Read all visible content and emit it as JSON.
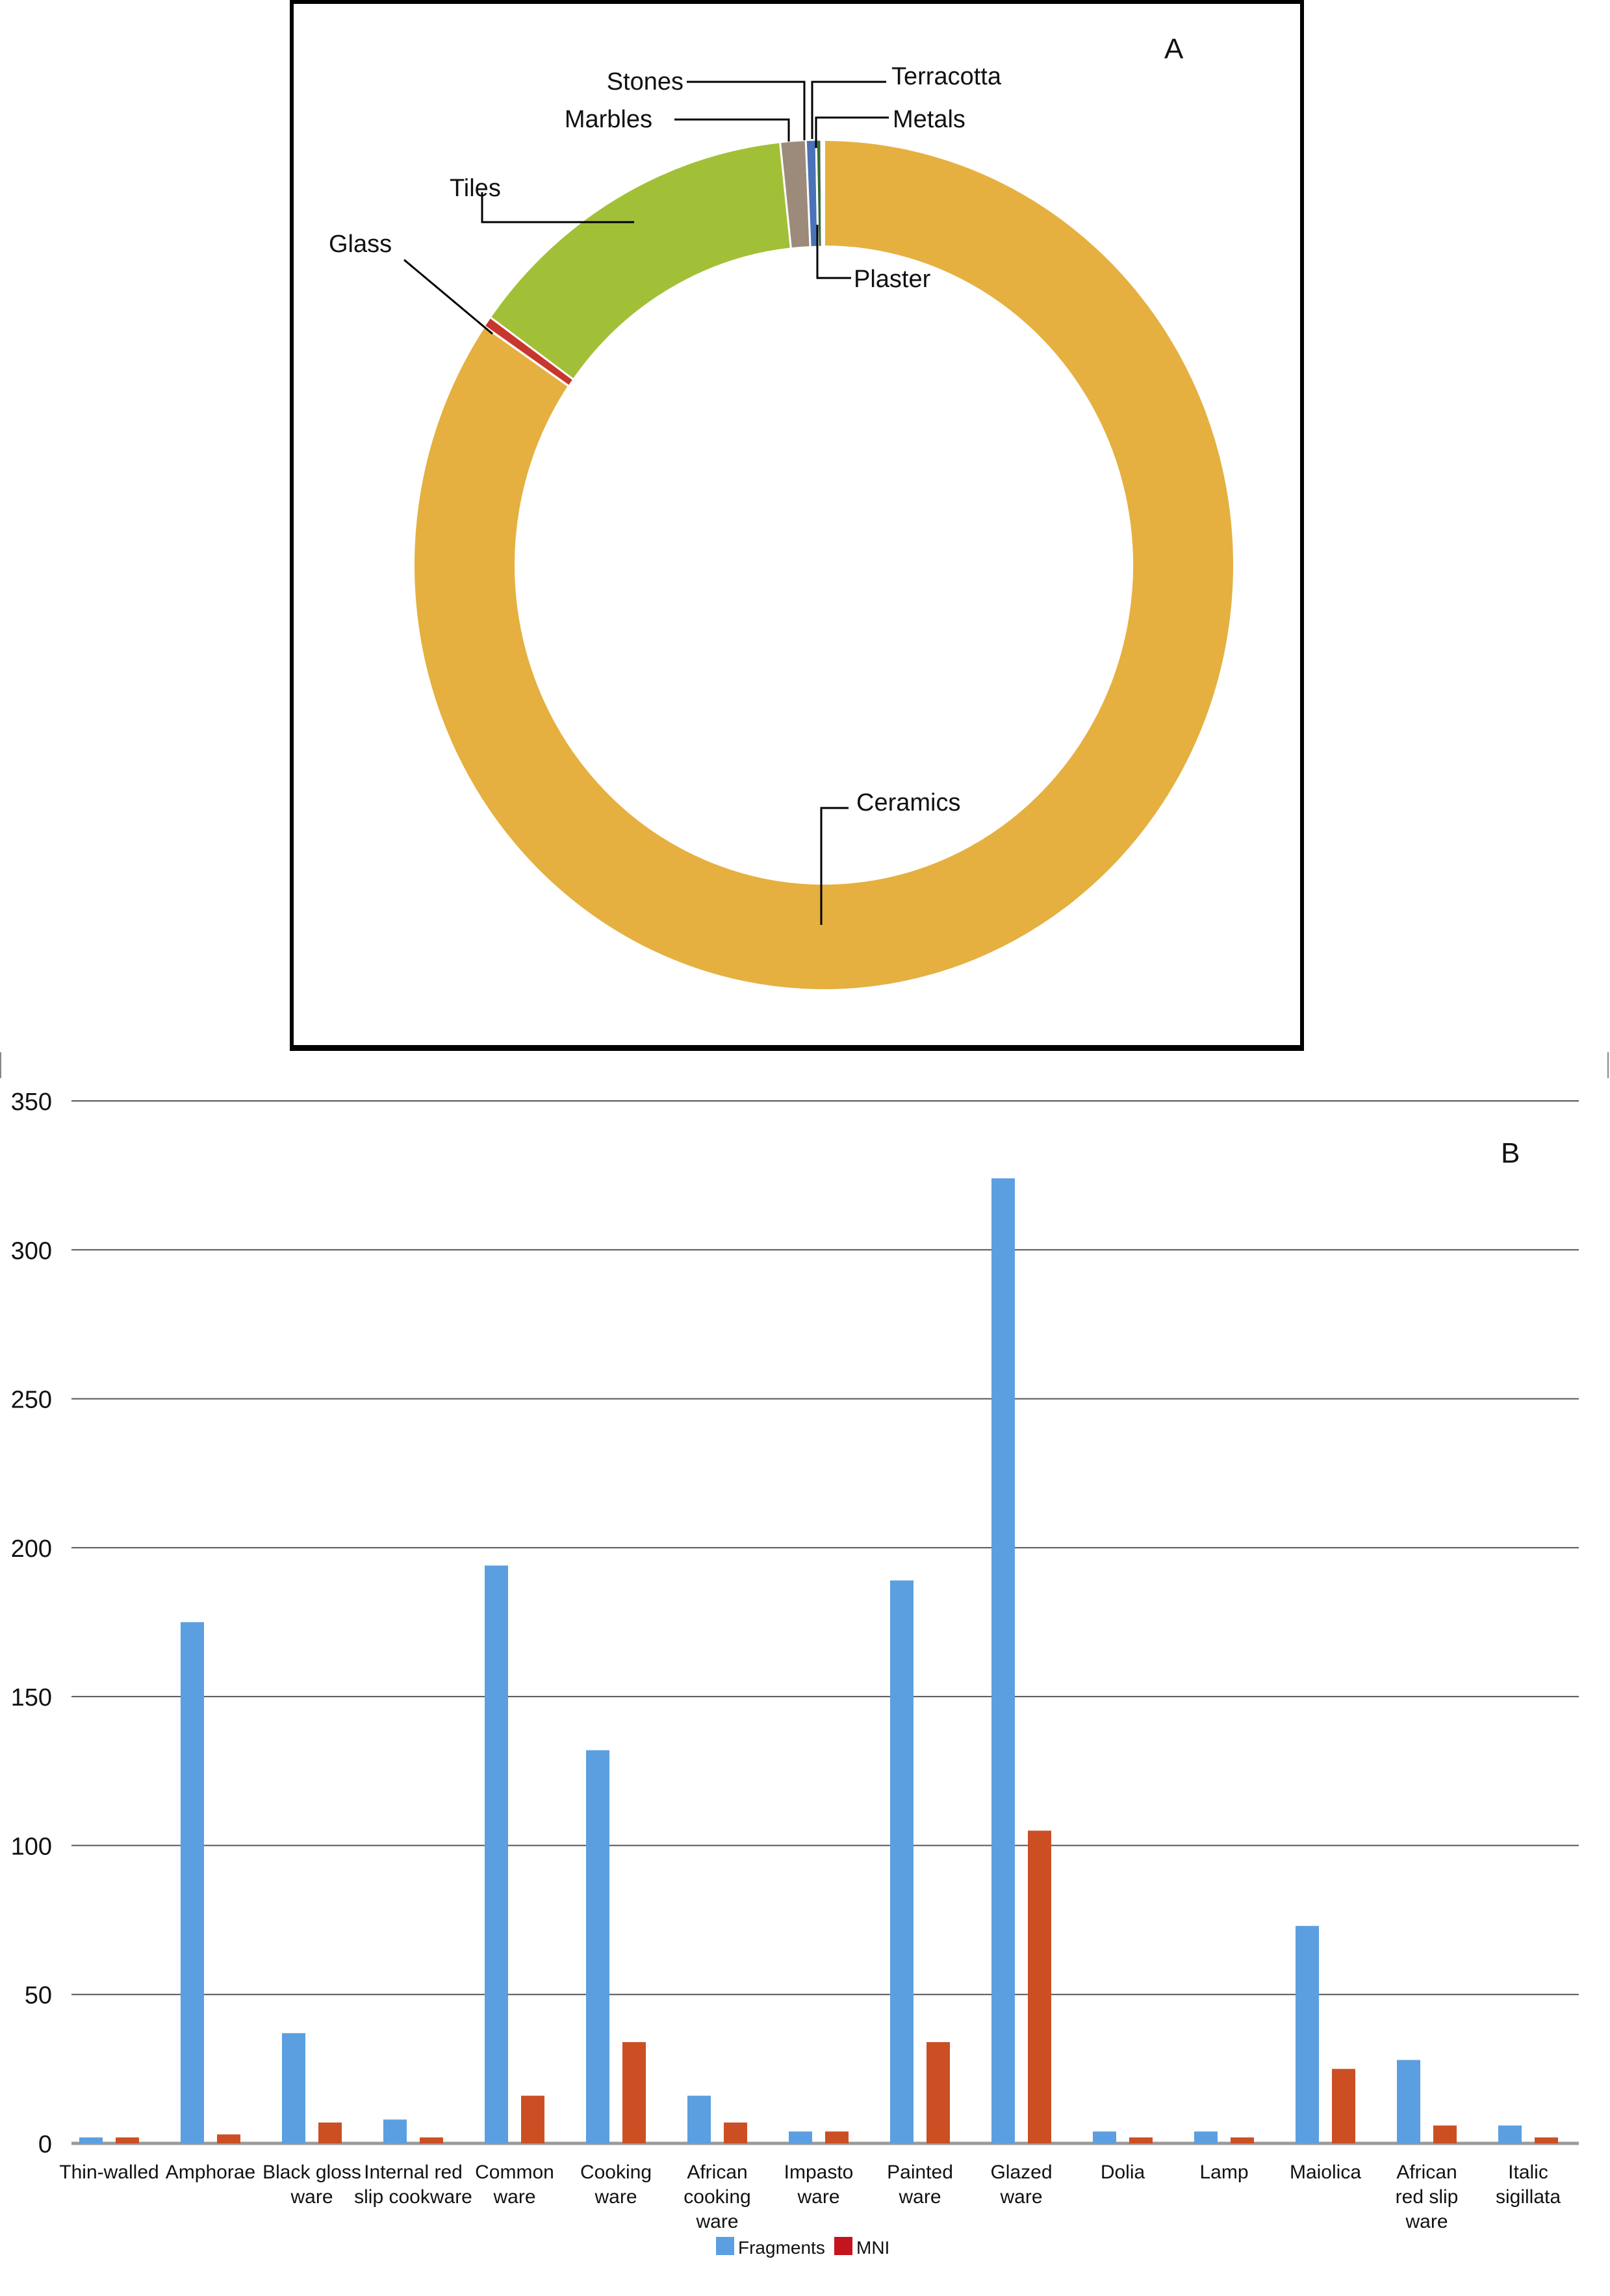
{
  "chart_data": [
    {
      "type": "pie",
      "variant": "donut",
      "panel_label": "A",
      "title": "",
      "labels": [
        "Ceramics",
        "Glass",
        "Tiles",
        "Marbles",
        "Stones",
        "Terracotta",
        "Metals",
        "Plaster"
      ],
      "values_percent_estimated": [
        84.5,
        0.4,
        13.4,
        1.0,
        0.4,
        0.2,
        0.05,
        0.05
      ],
      "colors": [
        "#E5B040",
        "#C8372D",
        "#A2C037",
        "#9C8A7B",
        "#4A72B8",
        "#3A6B3A",
        "#E8A86A",
        "#F2E23A"
      ],
      "start_angle": "12 o'clock, clockwise for Ceramics",
      "legend": "leader-line labels"
    },
    {
      "type": "bar",
      "panel_label": "B",
      "title": "",
      "xlabel": "",
      "ylabel": "",
      "ylim": [
        0,
        350
      ],
      "yticks": [
        0,
        50,
        100,
        150,
        200,
        250,
        300,
        350
      ],
      "grid": true,
      "legend_position": "bottom",
      "categories": [
        "Thin-walled",
        "Amphorae",
        "Black gloss ware",
        "Internal red slip cookware",
        "Common ware",
        "Cooking ware",
        "African cooking ware",
        "Impasto ware",
        "Painted ware",
        "Glazed ware",
        "Dolia",
        "Lamp",
        "Maiolica",
        "African red slip ware",
        "Italic sigillata"
      ],
      "series": [
        {
          "name": "Fragments",
          "color": "#5B9FE0",
          "values": [
            2,
            175,
            37,
            8,
            194,
            132,
            16,
            4,
            189,
            324,
            4,
            4,
            73,
            28,
            6
          ]
        },
        {
          "name": "MNI",
          "color": "#CC4F24",
          "values": [
            2,
            3,
            7,
            2,
            16,
            34,
            7,
            4,
            34,
            105,
            2,
            2,
            25,
            6,
            2
          ]
        }
      ]
    }
  ],
  "panel_a": {
    "label": "A",
    "slice_labels": {
      "ceramics": "Ceramics",
      "glass": "Glass",
      "tiles": "Tiles",
      "marbles": "Marbles",
      "stones": "Stones",
      "terracotta": "Terracotta",
      "metals": "Metals",
      "plaster": "Plaster"
    }
  },
  "panel_b": {
    "label": "B",
    "y_ticks": [
      "0",
      "50",
      "100",
      "150",
      "200",
      "250",
      "300",
      "350"
    ],
    "x_labels": [
      [
        "Thin-walled"
      ],
      [
        "Amphorae"
      ],
      [
        "Black gloss",
        "ware"
      ],
      [
        "Internal red",
        "slip cookware"
      ],
      [
        "Common",
        "ware"
      ],
      [
        "Cooking",
        "ware"
      ],
      [
        "African",
        "cooking",
        "ware"
      ],
      [
        "Impasto",
        "ware"
      ],
      [
        "Painted",
        "ware"
      ],
      [
        "Glazed",
        "ware"
      ],
      [
        "Dolia"
      ],
      [
        "Lamp"
      ],
      [
        "Maiolica"
      ],
      [
        "African",
        "red slip",
        "ware"
      ],
      [
        "Italic",
        "sigillata"
      ]
    ],
    "legend": [
      {
        "label": "Fragments",
        "color": "#5B9FE0"
      },
      {
        "label": "MNI",
        "color": "#C4141E"
      }
    ]
  }
}
